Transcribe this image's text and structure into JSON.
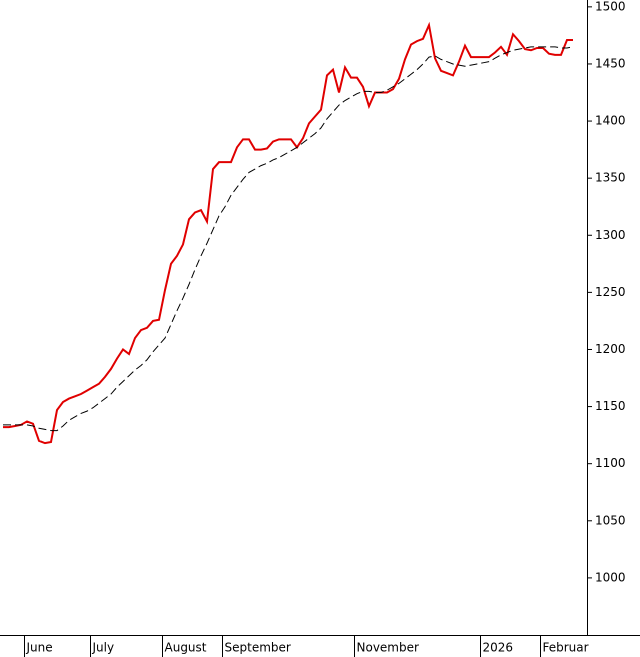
{
  "chart_data": {
    "type": "line",
    "categories": [
      null,
      null,
      null,
      null,
      "June",
      null,
      null,
      null,
      null,
      null,
      null,
      null,
      null,
      null,
      null,
      "July",
      null,
      null,
      null,
      null,
      null,
      null,
      null,
      null,
      null,
      null,
      null,
      "August",
      null,
      null,
      null,
      null,
      null,
      null,
      null,
      null,
      null,
      "September",
      null,
      null,
      null,
      null,
      null,
      null,
      null,
      null,
      null,
      null,
      null,
      null,
      null,
      null,
      null,
      null,
      null,
      null,
      null,
      null,
      null,
      "November",
      null,
      null,
      null,
      null,
      null,
      null,
      null,
      null,
      null,
      null,
      null,
      null,
      null,
      null,
      null,
      null,
      null,
      null,
      null,
      null,
      "2026",
      null,
      null,
      null,
      null,
      null,
      null,
      null,
      null,
      null,
      "Februar",
      null,
      null,
      null,
      null,
      null
    ],
    "series": [
      {
        "color": "#e00000",
        "dashed": false,
        "values": [
          1132,
          1132,
          1133,
          1134,
          1137,
          1135,
          1120,
          1118,
          1119,
          1147,
          1154,
          1157,
          1159,
          1161,
          1164,
          1167,
          1170,
          1176,
          1183,
          1192,
          1200,
          1196,
          1210,
          1217,
          1219,
          1225,
          1226,
          1252,
          1275,
          1282,
          1292,
          1314,
          1320,
          1322,
          1312,
          1358,
          1364,
          1364,
          1364,
          1377,
          1384,
          1384,
          1375,
          1375,
          1376,
          1382,
          1384,
          1384,
          1384,
          1377,
          1385,
          1398,
          1404,
          1410,
          1440,
          1445,
          1425,
          1447,
          1438,
          1438,
          1430,
          1413,
          1425,
          1425,
          1425,
          1428,
          1437,
          1454,
          1467,
          1470,
          1472,
          1484,
          1455,
          1444,
          1442,
          1440,
          1452,
          1466,
          1456,
          1456,
          1456,
          1456,
          1460,
          1465,
          1458,
          1476,
          1470,
          1463,
          1462,
          1464,
          1464,
          1459,
          1458,
          1458,
          1471,
          1471
        ]
      },
      {
        "color": "#000000",
        "dashed": true,
        "values": [
          1134,
          1134,
          1134,
          1134,
          1134,
          1133,
          1131,
          1130,
          1129,
          1129,
          1133,
          1138,
          1141,
          1144,
          1146,
          1149,
          1153,
          1157,
          1161,
          1167,
          1172,
          1177,
          1182,
          1186,
          1191,
          1198,
          1204,
          1210,
          1222,
          1234,
          1245,
          1257,
          1270,
          1282,
          1293,
          1305,
          1317,
          1325,
          1335,
          1342,
          1349,
          1355,
          1358,
          1361,
          1363,
          1366,
          1368,
          1371,
          1374,
          1377,
          1381,
          1385,
          1389,
          1394,
          1402,
          1408,
          1414,
          1418,
          1421,
          1424,
          1426,
          1426,
          1425,
          1425,
          1427,
          1430,
          1433,
          1437,
          1441,
          1445,
          1450,
          1456,
          1457,
          1454,
          1452,
          1450,
          1449,
          1448,
          1449,
          1450,
          1451,
          1452,
          1455,
          1458,
          1460,
          1462,
          1463,
          1464,
          1465,
          1465,
          1465,
          1465,
          1465,
          1464,
          1464,
          1465
        ]
      }
    ],
    "ylim": [
      950,
      1506
    ],
    "yticks": [
      1000,
      1050,
      1100,
      1150,
      1200,
      1250,
      1300,
      1350,
      1400,
      1450,
      1500
    ]
  }
}
